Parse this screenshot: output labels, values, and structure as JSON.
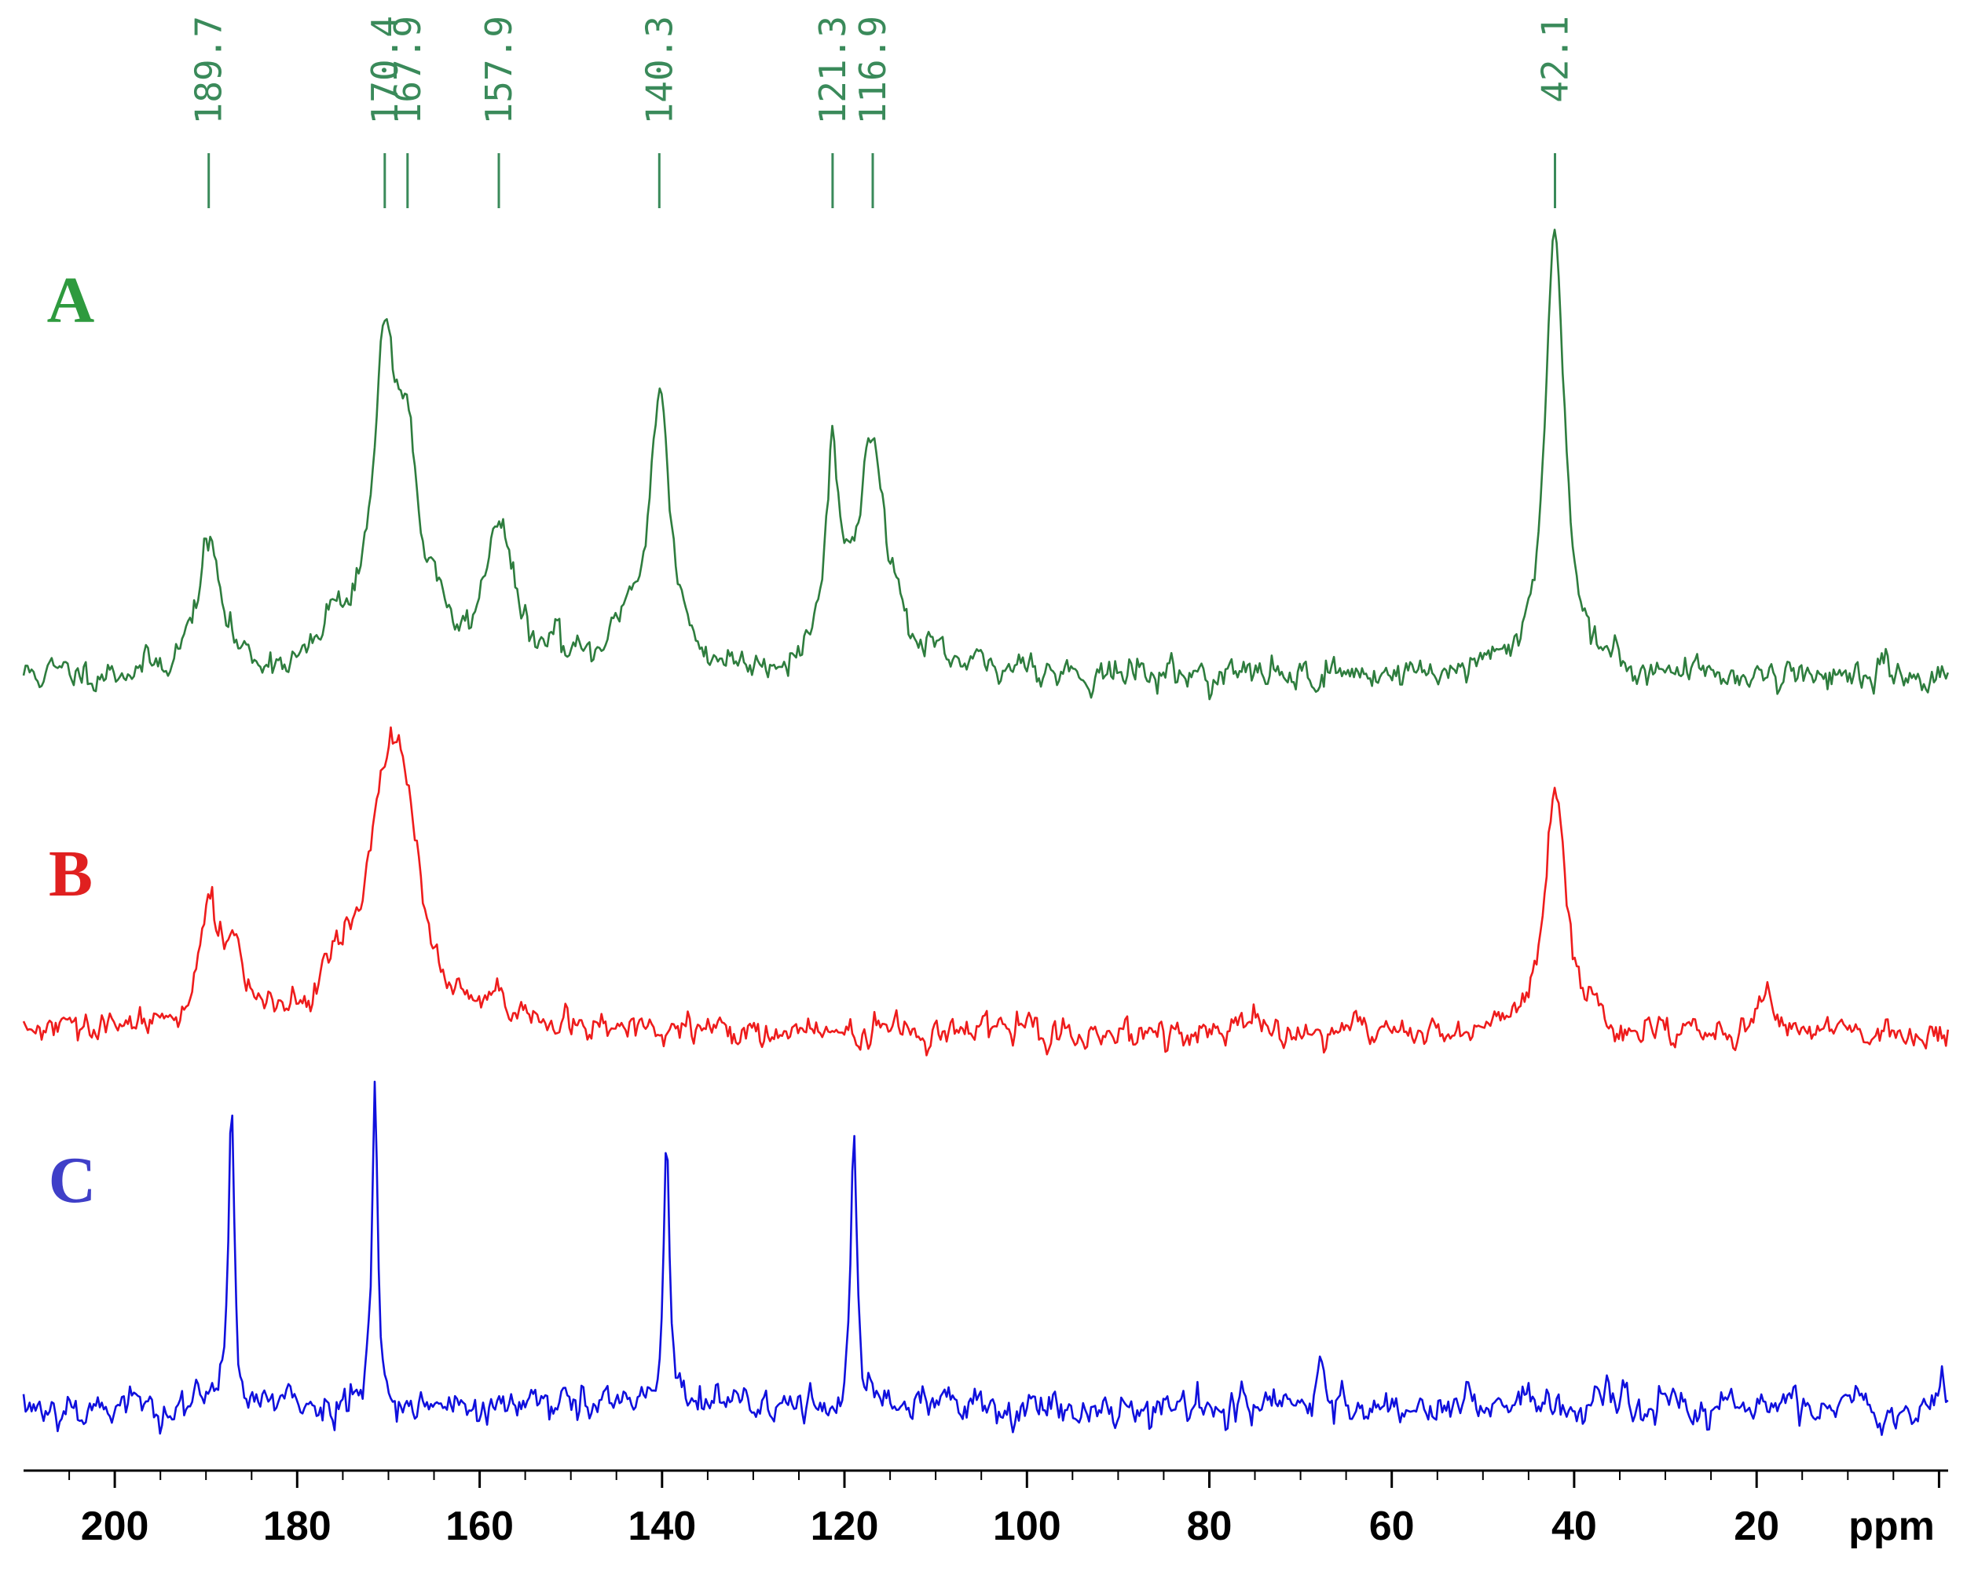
{
  "chart_data": {
    "type": "line",
    "title": "",
    "xlabel": "ppm",
    "ylabel": "",
    "x_axis": {
      "unit_label": "ppm",
      "reversed": true,
      "range": [
        210,
        -1
      ],
      "major_ticks": [
        200,
        180,
        160,
        140,
        120,
        100,
        80,
        60,
        40,
        20
      ],
      "minor_tick_step": 5
    },
    "grid": false,
    "peak_labels": {
      "color": "#3a8a5a",
      "values": [
        "189.7",
        "170.4",
        "167.9",
        "157.9",
        "140.3",
        "121.3",
        "116.9",
        "42.1"
      ]
    },
    "series": [
      {
        "name": "A",
        "color": "#2e7d3e",
        "label_color": "#2e9a3e",
        "noise_level": 0.035,
        "noise_seed": 11,
        "peaks": [
          {
            "x": 189.7,
            "h": 0.29,
            "w": 1.6
          },
          {
            "x": 176.0,
            "h": 0.1,
            "w": 1.0
          },
          {
            "x": 170.4,
            "h": 0.7,
            "w": 1.7
          },
          {
            "x": 167.9,
            "h": 0.38,
            "w": 1.3
          },
          {
            "x": 165.0,
            "h": 0.12,
            "w": 0.8
          },
          {
            "x": 157.9,
            "h": 0.34,
            "w": 1.8
          },
          {
            "x": 151.5,
            "h": 0.07,
            "w": 0.5
          },
          {
            "x": 144.0,
            "h": 0.1,
            "w": 1.2
          },
          {
            "x": 140.3,
            "h": 0.62,
            "w": 1.4
          },
          {
            "x": 121.3,
            "h": 0.45,
            "w": 0.9
          },
          {
            "x": 116.9,
            "h": 0.52,
            "w": 2.0
          },
          {
            "x": 100.0,
            "h": 0.05,
            "w": 0.6
          },
          {
            "x": 42.1,
            "h": 1.0,
            "w": 1.3
          }
        ]
      },
      {
        "name": "B",
        "color": "#ee1c1c",
        "label_color": "#e02020",
        "noise_level": 0.055,
        "noise_seed": 29,
        "peaks": [
          {
            "x": 189.7,
            "h": 0.45,
            "w": 1.3
          },
          {
            "x": 187.0,
            "h": 0.3,
            "w": 1.0
          },
          {
            "x": 176.0,
            "h": 0.12,
            "w": 2.0
          },
          {
            "x": 170.0,
            "h": 0.88,
            "w": 3.0
          },
          {
            "x": 168.0,
            "h": 0.3,
            "w": 2.0
          },
          {
            "x": 158.0,
            "h": 0.08,
            "w": 0.8
          },
          {
            "x": 42.1,
            "h": 0.88,
            "w": 1.4
          },
          {
            "x": 19.0,
            "h": 0.2,
            "w": 0.8
          }
        ]
      },
      {
        "name": "C",
        "color": "#1010dd",
        "label_color": "#3f3fc8",
        "noise_level": 0.06,
        "noise_seed": 53,
        "peaks": [
          {
            "x": 187.2,
            "h": 1.0,
            "w": 0.38
          },
          {
            "x": 171.5,
            "h": 1.06,
            "w": 0.38
          },
          {
            "x": 139.5,
            "h": 0.86,
            "w": 0.38
          },
          {
            "x": 119.0,
            "h": 0.9,
            "w": 0.38
          },
          {
            "x": 67.8,
            "h": 0.18,
            "w": 0.35
          },
          {
            "x": 52.0,
            "h": 0.08,
            "w": 0.3
          },
          {
            "x": -0.3,
            "h": 0.14,
            "w": 0.2
          }
        ]
      }
    ]
  }
}
